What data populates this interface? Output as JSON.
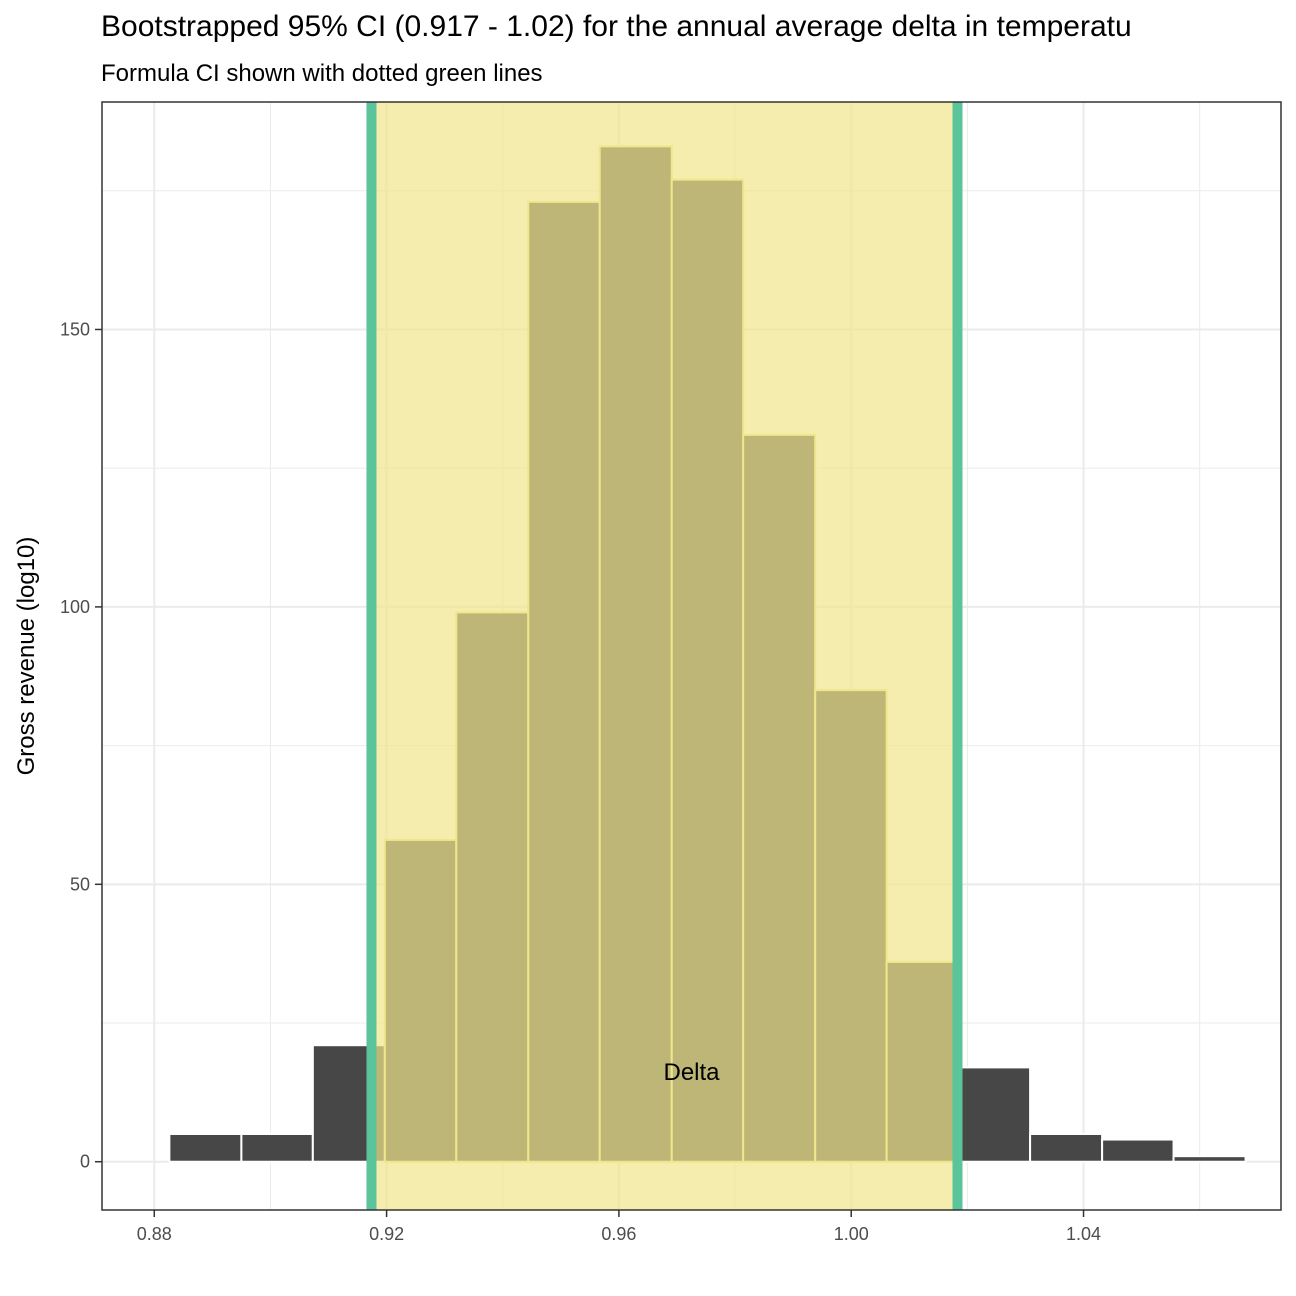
{
  "chart_data": {
    "type": "bar",
    "title": "Bootstrapped 95% CI (0.917 - 1.02) for the annual average delta in temperatu",
    "subtitle": "Formula CI shown with dotted green lines",
    "xlabel": "Delta",
    "ylabel": "Gross revenue (log10)",
    "xlim": [
      0.871,
      1.074
    ],
    "ylim": [
      -8.7,
      191
    ],
    "x_ticks": [
      0.88,
      0.92,
      0.96,
      1.0,
      1.04
    ],
    "x_tick_labels": [
      "0.88",
      "0.92",
      "0.96",
      "1.00",
      "1.04"
    ],
    "y_ticks": [
      0,
      50,
      100,
      150
    ],
    "y_tick_labels": [
      "0",
      "50",
      "100",
      "150"
    ],
    "bin_width": 0.01235,
    "bins": [
      {
        "x_start": 0.8826,
        "x_end": 0.895,
        "value": 5
      },
      {
        "x_start": 0.895,
        "x_end": 0.9073,
        "value": 5
      },
      {
        "x_start": 0.9073,
        "x_end": 0.9197,
        "value": 21
      },
      {
        "x_start": 0.9197,
        "x_end": 0.932,
        "value": 58
      },
      {
        "x_start": 0.932,
        "x_end": 0.9444,
        "value": 99
      },
      {
        "x_start": 0.9444,
        "x_end": 0.9567,
        "value": 173
      },
      {
        "x_start": 0.9567,
        "x_end": 0.9691,
        "value": 183
      },
      {
        "x_start": 0.9691,
        "x_end": 0.9814,
        "value": 177
      },
      {
        "x_start": 0.9814,
        "x_end": 0.9938,
        "value": 131
      },
      {
        "x_start": 0.9938,
        "x_end": 1.0061,
        "value": 85
      },
      {
        "x_start": 1.0061,
        "x_end": 1.0185,
        "value": 36
      },
      {
        "x_start": 1.0185,
        "x_end": 1.0308,
        "value": 17
      },
      {
        "x_start": 1.0308,
        "x_end": 1.0432,
        "value": 5
      },
      {
        "x_start": 1.0432,
        "x_end": 1.0555,
        "value": 4
      },
      {
        "x_start": 1.0555,
        "x_end": 1.0679,
        "value": 1
      }
    ],
    "ci_lower": 0.9174,
    "ci_upper": 1.0183,
    "colors": {
      "bar_fill": "#474747",
      "bar_outline": "#ffffff",
      "ci_shade": "#f0e68c",
      "ci_bar_outline": "#f0e68c",
      "ci_line": "#5bc49a",
      "grid": "#ebebeb",
      "panel_border": "#333333"
    }
  }
}
